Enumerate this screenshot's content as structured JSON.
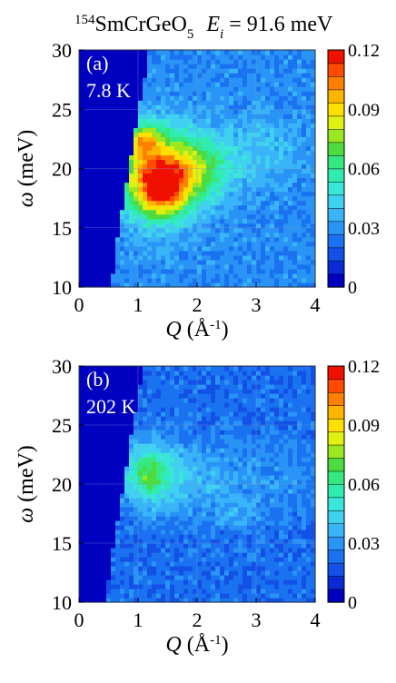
{
  "title": {
    "isotope": "154",
    "compound": "SmCrGeO",
    "compound_sub": "5",
    "energy_symbol": "E",
    "energy_sub": "i",
    "energy_value": " = 91.6 meV"
  },
  "axis_labels": {
    "y_symbol": "ω",
    "y_unit": " (meV)",
    "x_symbol": "Q",
    "x_unit": " (Å",
    "x_unit_exp": "-1",
    "x_unit_close": ")"
  },
  "colors": {
    "scale": [
      "#0000c0",
      "#0a2ad8",
      "#1250e6",
      "#1a72f0",
      "#2a94f6",
      "#3ab4f8",
      "#40d0f0",
      "#3ae6d8",
      "#30ecb0",
      "#36e880",
      "#4cdc40",
      "#9ce820",
      "#e0f010",
      "#ffe000",
      "#ffb400",
      "#ff8000",
      "#ff4a00",
      "#f01000"
    ]
  },
  "chart_data": [
    {
      "type": "heatmap",
      "panel": "(a)",
      "temperature": "7.8 K",
      "xlabel": "Q (Å-1)",
      "ylabel": "ω (meV)",
      "xlim": [
        0,
        4
      ],
      "ylim": [
        10,
        30
      ],
      "x_ticks": [
        "0",
        "1",
        "2",
        "3",
        "4"
      ],
      "y_ticks": [
        "10",
        "15",
        "20",
        "25",
        "30"
      ],
      "colorbar": {
        "range": [
          0,
          0.12
        ],
        "ticks": [
          "0",
          "0.03",
          "0.06",
          "0.09",
          "0.12"
        ]
      },
      "kinematic_edge_q": [
        [
          10,
          0.55
        ],
        [
          12,
          0.6
        ],
        [
          14,
          0.65
        ],
        [
          16,
          0.72
        ],
        [
          18,
          0.78
        ],
        [
          20,
          0.85
        ],
        [
          22,
          0.92
        ],
        [
          24,
          0.98
        ],
        [
          26,
          1.05
        ],
        [
          28,
          1.12
        ],
        [
          30,
          1.2
        ]
      ],
      "background_intensity": 0.028,
      "features": [
        {
          "q": 1.35,
          "w": 19.5,
          "sigma_q": 0.5,
          "sigma_w": 2.6,
          "intensity": 0.07
        },
        {
          "q": 1.4,
          "w": 18.3,
          "sigma_q": 0.25,
          "sigma_w": 1.4,
          "intensity": 0.045
        },
        {
          "q": 1.1,
          "w": 22.4,
          "sigma_q": 0.18,
          "sigma_w": 1.0,
          "intensity": 0.04
        },
        {
          "q": 2.05,
          "w": 20.0,
          "sigma_q": 0.38,
          "sigma_w": 1.7,
          "intensity": 0.025
        },
        {
          "q": 3.0,
          "w": 21.5,
          "sigma_q": 0.6,
          "sigma_w": 2.2,
          "intensity": 0.012
        }
      ]
    },
    {
      "type": "heatmap",
      "panel": "(b)",
      "temperature": "202 K",
      "xlabel": "Q (Å-1)",
      "ylabel": "ω (meV)",
      "xlim": [
        0,
        4
      ],
      "ylim": [
        10,
        30
      ],
      "x_ticks": [
        "0",
        "1",
        "2",
        "3",
        "4"
      ],
      "y_ticks": [
        "10",
        "15",
        "20",
        "25",
        "30"
      ],
      "colorbar": {
        "range": [
          0,
          0.12
        ],
        "ticks": [
          "0",
          "0.03",
          "0.06",
          "0.09",
          "0.12"
        ]
      },
      "kinematic_edge_q": [
        [
          10,
          0.45
        ],
        [
          12,
          0.5
        ],
        [
          14,
          0.55
        ],
        [
          16,
          0.62
        ],
        [
          18,
          0.7
        ],
        [
          20,
          0.75
        ],
        [
          22,
          0.82
        ],
        [
          24,
          0.88
        ],
        [
          26,
          0.95
        ],
        [
          28,
          1.02
        ],
        [
          30,
          1.1
        ]
      ],
      "background_intensity": 0.022,
      "features": [
        {
          "q": 1.2,
          "w": 20.8,
          "sigma_q": 0.35,
          "sigma_w": 2.0,
          "intensity": 0.03
        },
        {
          "q": 1.15,
          "w": 21.0,
          "sigma_q": 0.18,
          "sigma_w": 1.2,
          "intensity": 0.018
        },
        {
          "q": 2.0,
          "w": 20.5,
          "sigma_q": 0.5,
          "sigma_w": 2.2,
          "intensity": 0.014
        },
        {
          "q": 2.7,
          "w": 17.5,
          "sigma_q": 0.25,
          "sigma_w": 1.0,
          "intensity": 0.01
        },
        {
          "q": 3.3,
          "w": 20.5,
          "sigma_q": 0.55,
          "sigma_w": 2.5,
          "intensity": 0.008
        }
      ]
    }
  ]
}
